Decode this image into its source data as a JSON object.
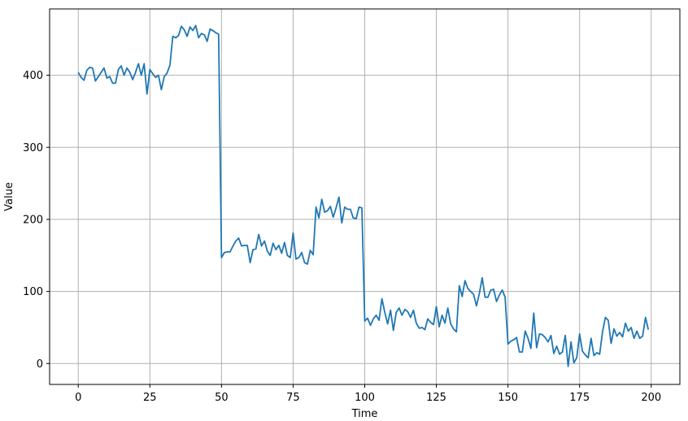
{
  "chart_data": {
    "type": "line",
    "title": "",
    "xlabel": "Time",
    "ylabel": "Value",
    "xlim": [
      -10,
      210
    ],
    "ylim": [
      -29,
      492
    ],
    "xticks": [
      0,
      25,
      50,
      75,
      100,
      125,
      150,
      175,
      200
    ],
    "yticks": [
      0,
      100,
      200,
      300,
      400
    ],
    "grid": true,
    "legend": "none",
    "series": [
      {
        "color": "#1f77b4",
        "x": [
          0,
          1,
          2,
          3,
          4,
          5,
          6,
          7,
          8,
          9,
          10,
          11,
          12,
          13,
          14,
          15,
          16,
          17,
          18,
          19,
          20,
          21,
          22,
          23,
          24,
          25,
          26,
          27,
          28,
          29,
          30,
          31,
          32,
          33,
          34,
          35,
          36,
          37,
          38,
          39,
          40,
          41,
          42,
          43,
          44,
          45,
          46,
          47,
          48,
          49,
          50,
          51,
          52,
          53,
          54,
          55,
          56,
          57,
          58,
          59,
          60,
          61,
          62,
          63,
          64,
          65,
          66,
          67,
          68,
          69,
          70,
          71,
          72,
          73,
          74,
          75,
          76,
          77,
          78,
          79,
          80,
          81,
          82,
          83,
          84,
          85,
          86,
          87,
          88,
          89,
          90,
          91,
          92,
          93,
          94,
          95,
          96,
          97,
          98,
          99,
          100,
          101,
          102,
          103,
          104,
          105,
          106,
          107,
          108,
          109,
          110,
          111,
          112,
          113,
          114,
          115,
          116,
          117,
          118,
          119,
          120,
          121,
          122,
          123,
          124,
          125,
          126,
          127,
          128,
          129,
          130,
          131,
          132,
          133,
          134,
          135,
          136,
          137,
          138,
          139,
          140,
          141,
          142,
          143,
          144,
          145,
          146,
          147,
          148,
          149,
          150,
          151,
          152,
          153,
          154,
          155,
          156,
          157,
          158,
          159,
          160,
          161,
          162,
          163,
          164,
          165,
          166,
          167,
          168,
          169,
          170,
          171,
          172,
          173,
          174,
          175,
          176,
          177,
          178,
          179,
          180,
          181,
          182,
          183,
          184,
          185,
          186,
          187,
          188,
          189,
          190,
          191,
          192,
          193,
          194,
          195,
          196,
          197,
          198,
          199
        ],
        "values": [
          404,
          397,
          393,
          407,
          411,
          410,
          392,
          398,
          404,
          410,
          396,
          398,
          389,
          389,
          408,
          413,
          400,
          410,
          404,
          394,
          404,
          416,
          400,
          416,
          374,
          408,
          402,
          397,
          400,
          380,
          398,
          403,
          414,
          454,
          452,
          455,
          468,
          463,
          454,
          467,
          462,
          469,
          452,
          458,
          456,
          447,
          464,
          462,
          459,
          457,
          147,
          154,
          155,
          155,
          163,
          170,
          174,
          163,
          164,
          164,
          140,
          158,
          159,
          179,
          163,
          170,
          156,
          150,
          167,
          158,
          164,
          153,
          168,
          150,
          147,
          181,
          145,
          147,
          154,
          140,
          138,
          157,
          151,
          217,
          202,
          228,
          210,
          212,
          218,
          203,
          216,
          231,
          195,
          217,
          214,
          214,
          202,
          201,
          217,
          216,
          59,
          63,
          53,
          62,
          67,
          60,
          90,
          71,
          55,
          74,
          46,
          71,
          77,
          67,
          75,
          72,
          64,
          74,
          56,
          49,
          50,
          47,
          62,
          57,
          54,
          79,
          51,
          67,
          56,
          77,
          55,
          48,
          44,
          108,
          93,
          115,
          104,
          100,
          96,
          80,
          97,
          119,
          92,
          92,
          102,
          103,
          86,
          95,
          102,
          92,
          27,
          31,
          33,
          36,
          16,
          16,
          45,
          35,
          21,
          70,
          22,
          41,
          40,
          36,
          30,
          39,
          14,
          24,
          13,
          16,
          39,
          -4,
          30,
          1,
          8,
          41,
          17,
          12,
          8,
          35,
          11,
          15,
          13,
          44,
          64,
          60,
          28,
          48,
          38,
          43,
          37,
          56,
          45,
          50,
          35,
          45,
          35,
          38,
          64,
          47
        ]
      }
    ]
  }
}
